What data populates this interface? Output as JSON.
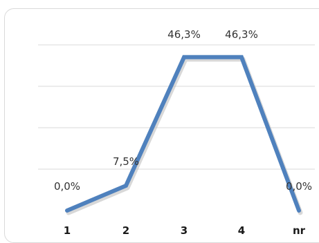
{
  "chart_data": {
    "type": "line",
    "categories": [
      "1",
      "2",
      "3",
      "4",
      "nr"
    ],
    "values": [
      0.0,
      7.5,
      46.3,
      46.3,
      0.0
    ],
    "data_labels": [
      "0,0%",
      "7,5%",
      "46,3%",
      "46,3%",
      "0,0%"
    ],
    "title": "",
    "xlabel": "",
    "ylabel": "",
    "ylim": [
      0,
      100
    ],
    "grid": true,
    "legend": "none",
    "colors": {
      "line": "#4f81bd",
      "line_shadow": "#b8b8b8",
      "grid": "#d9d9d9",
      "frame": "#d9d9d9"
    }
  }
}
